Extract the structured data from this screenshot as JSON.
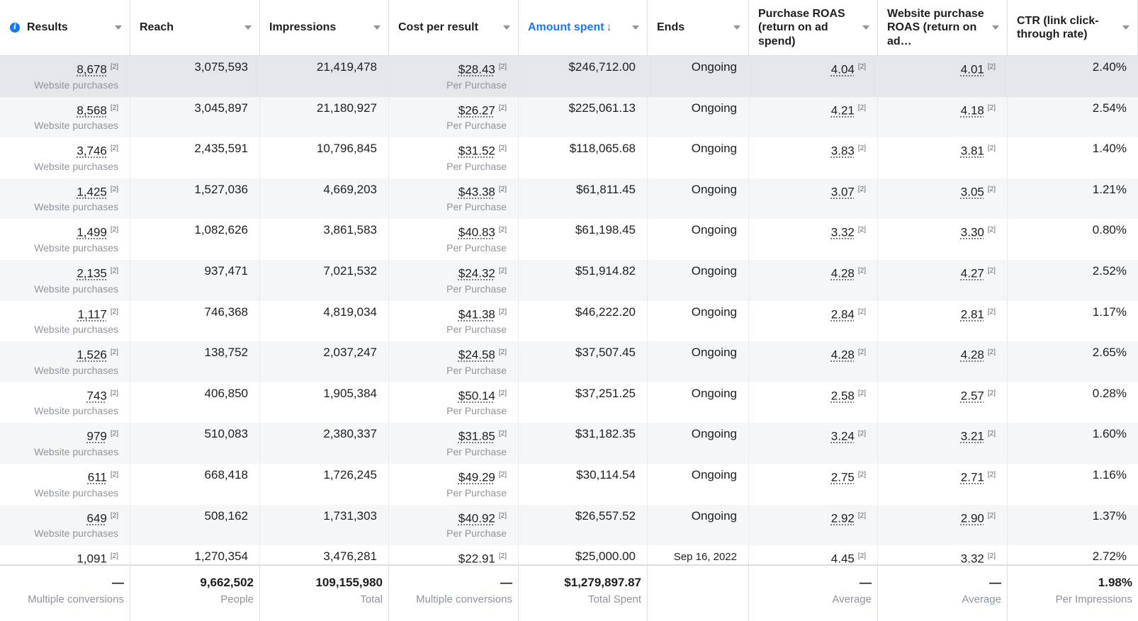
{
  "columns": [
    {
      "label": "Results",
      "info": "i"
    },
    {
      "label": "Reach"
    },
    {
      "label": "Impressions"
    },
    {
      "label": "Cost per result"
    },
    {
      "label": "Amount spent",
      "sort_arrow": "↓"
    },
    {
      "label": "Ends"
    },
    {
      "label": "Purchase ROAS (return on ad spend)"
    },
    {
      "label": "Website purchase ROAS (return on ad…"
    },
    {
      "label": "CTR (link click-through rate)"
    }
  ],
  "footnote_mark": "[2]",
  "results_sub": "Website purchases",
  "cost_sub": "Per Purchase",
  "rows": [
    {
      "results": "8,678",
      "reach": "3,075,593",
      "impressions": "21,419,478",
      "cost": "$28.43",
      "spent": "$246,712.00",
      "ends": "Ongoing",
      "roas": "4.04",
      "wroas": "4.01",
      "ctr": "2.40%"
    },
    {
      "results": "8,568",
      "reach": "3,045,897",
      "impressions": "21,180,927",
      "cost": "$26.27",
      "spent": "$225,061.13",
      "ends": "Ongoing",
      "roas": "4.21",
      "wroas": "4.18",
      "ctr": "2.54%"
    },
    {
      "results": "3,746",
      "reach": "2,435,591",
      "impressions": "10,796,845",
      "cost": "$31.52",
      "spent": "$118,065.68",
      "ends": "Ongoing",
      "roas": "3.83",
      "wroas": "3.81",
      "ctr": "1.40%"
    },
    {
      "results": "1,425",
      "reach": "1,527,036",
      "impressions": "4,669,203",
      "cost": "$43.38",
      "spent": "$61,811.45",
      "ends": "Ongoing",
      "roas": "3.07",
      "wroas": "3.05",
      "ctr": "1.21%"
    },
    {
      "results": "1,499",
      "reach": "1,082,626",
      "impressions": "3,861,583",
      "cost": "$40.83",
      "spent": "$61,198.45",
      "ends": "Ongoing",
      "roas": "3.32",
      "wroas": "3.30",
      "ctr": "0.80%"
    },
    {
      "results": "2,135",
      "reach": "937,471",
      "impressions": "7,021,532",
      "cost": "$24.32",
      "spent": "$51,914.82",
      "ends": "Ongoing",
      "roas": "4.28",
      "wroas": "4.27",
      "ctr": "2.52%"
    },
    {
      "results": "1,117",
      "reach": "746,368",
      "impressions": "4,819,034",
      "cost": "$41.38",
      "spent": "$46,222.20",
      "ends": "Ongoing",
      "roas": "2.84",
      "wroas": "2.81",
      "ctr": "1.17%"
    },
    {
      "results": "1,526",
      "reach": "138,752",
      "impressions": "2,037,247",
      "cost": "$24.58",
      "spent": "$37,507.45",
      "ends": "Ongoing",
      "roas": "4.28",
      "wroas": "4.28",
      "ctr": "2.65%"
    },
    {
      "results": "743",
      "reach": "406,850",
      "impressions": "1,905,384",
      "cost": "$50.14",
      "spent": "$37,251.25",
      "ends": "Ongoing",
      "roas": "2.58",
      "wroas": "2.57",
      "ctr": "0.28%"
    },
    {
      "results": "979",
      "reach": "510,083",
      "impressions": "2,380,337",
      "cost": "$31.85",
      "spent": "$31,182.35",
      "ends": "Ongoing",
      "roas": "3.24",
      "wroas": "3.21",
      "ctr": "1.60%"
    },
    {
      "results": "611",
      "reach": "668,418",
      "impressions": "1,726,245",
      "cost": "$49.29",
      "spent": "$30,114.54",
      "ends": "Ongoing",
      "roas": "2.75",
      "wroas": "2.71",
      "ctr": "1.16%"
    },
    {
      "results": "649",
      "reach": "508,162",
      "impressions": "1,731,303",
      "cost": "$40.92",
      "spent": "$26,557.52",
      "ends": "Ongoing",
      "roas": "2.92",
      "wroas": "2.90",
      "ctr": "1.37%"
    },
    {
      "results": "1,091",
      "reach": "1,270,354",
      "impressions": "3,476,281",
      "cost": "$22.91",
      "spent": "$25,000.00",
      "ends": "Sep 16, 2022",
      "roas": "4.45",
      "wroas": "3.32",
      "ctr": "2.72%"
    }
  ],
  "totals": [
    {
      "value": "—",
      "label": "Multiple conversions"
    },
    {
      "value": "9,662,502",
      "label": "People"
    },
    {
      "value": "109,155,980",
      "label": "Total"
    },
    {
      "value": "—",
      "label": "Multiple conversions"
    },
    {
      "value": "$1,279,897.87",
      "label": "Total Spent"
    },
    {
      "value": "",
      "label": ""
    },
    {
      "value": "—",
      "label": "Average"
    },
    {
      "value": "—",
      "label": "Average"
    },
    {
      "value": "1.98%",
      "label": "Per Impressions"
    }
  ],
  "colors": {
    "accent": "#1877f2",
    "border": "#dadde1",
    "muted": "#90949c"
  }
}
